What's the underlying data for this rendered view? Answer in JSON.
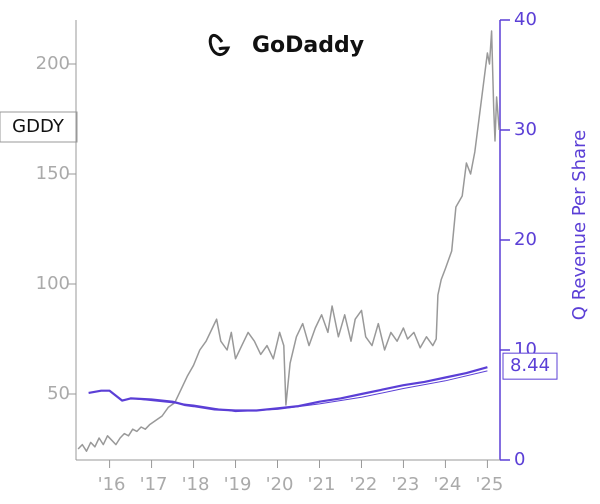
{
  "chart_data": {
    "type": "line",
    "title": "GoDaddy",
    "ticker": "GDDY",
    "y2_label": "Q Revenue Per Share",
    "xlim": [
      2015.2,
      2025.3
    ],
    "xticks": [
      {
        "value": 2016,
        "label": "'16"
      },
      {
        "value": 2017,
        "label": "'17"
      },
      {
        "value": 2018,
        "label": "'18"
      },
      {
        "value": 2019,
        "label": "'19"
      },
      {
        "value": 2020,
        "label": "'20"
      },
      {
        "value": 2021,
        "label": "'21"
      },
      {
        "value": 2022,
        "label": "'22"
      },
      {
        "value": 2023,
        "label": "'23"
      },
      {
        "value": 2024,
        "label": "'24"
      },
      {
        "value": 2025,
        "label": "'25"
      }
    ],
    "ylim": [
      20,
      220
    ],
    "yticks": [
      50,
      100,
      150,
      200
    ],
    "y2lim": [
      0,
      40
    ],
    "y2ticks": [
      0,
      10,
      20,
      30,
      40
    ],
    "series": [
      {
        "name": "GDDY",
        "color": "#999999",
        "axis": "y",
        "width": 1.5,
        "x": [
          2015.25,
          2015.35,
          2015.45,
          2015.55,
          2015.65,
          2015.75,
          2015.85,
          2015.95,
          2016.05,
          2016.15,
          2016.25,
          2016.35,
          2016.45,
          2016.55,
          2016.65,
          2016.75,
          2016.85,
          2016.95,
          2017.1,
          2017.25,
          2017.4,
          2017.55,
          2017.7,
          2017.85,
          2018.0,
          2018.15,
          2018.3,
          2018.45,
          2018.55,
          2018.65,
          2018.8,
          2018.9,
          2019.0,
          2019.15,
          2019.3,
          2019.45,
          2019.6,
          2019.75,
          2019.9,
          2020.05,
          2020.15,
          2020.2,
          2020.3,
          2020.45,
          2020.6,
          2020.75,
          2020.9,
          2021.05,
          2021.2,
          2021.3,
          2021.45,
          2021.6,
          2021.75,
          2021.85,
          2022.0,
          2022.1,
          2022.25,
          2022.4,
          2022.55,
          2022.7,
          2022.85,
          2023.0,
          2023.1,
          2023.25,
          2023.4,
          2023.55,
          2023.7,
          2023.78,
          2023.82,
          2023.9,
          2024.0,
          2024.15,
          2024.25,
          2024.4,
          2024.5,
          2024.6,
          2024.7,
          2024.8,
          2024.9,
          2025.0,
          2025.05,
          2025.1,
          2025.15,
          2025.18,
          2025.22,
          2025.28
        ],
        "values": [
          25,
          27,
          24,
          28,
          26,
          30,
          27,
          31,
          29,
          27,
          30,
          32,
          31,
          34,
          33,
          35,
          34,
          36,
          38,
          40,
          44,
          46,
          52,
          58,
          63,
          70,
          74,
          80,
          84,
          74,
          70,
          78,
          66,
          72,
          78,
          74,
          68,
          72,
          66,
          78,
          72,
          45,
          64,
          76,
          82,
          72,
          80,
          86,
          78,
          90,
          76,
          86,
          74,
          84,
          88,
          76,
          72,
          82,
          70,
          78,
          74,
          80,
          75,
          78,
          71,
          76,
          72,
          75,
          95,
          102,
          107,
          115,
          135,
          140,
          155,
          150,
          160,
          175,
          190,
          205,
          200,
          215,
          180,
          165,
          185,
          170
        ]
      },
      {
        "color": "#5b3fd6",
        "axis": "y2",
        "width": 2.2,
        "x": [
          2015.5,
          2015.8,
          2016.0,
          2016.3,
          2016.5,
          2017.0,
          2017.5,
          2017.8,
          2018.0,
          2018.5,
          2019.0,
          2019.5,
          2020.0,
          2020.5,
          2021.0,
          2021.5,
          2022.0,
          2022.5,
          2023.0,
          2023.5,
          2024.0,
          2024.5,
          2025.0
        ],
        "values": [
          6.1,
          6.3,
          6.3,
          5.4,
          5.6,
          5.5,
          5.3,
          5.0,
          4.9,
          4.6,
          4.5,
          4.5,
          4.7,
          4.9,
          5.3,
          5.6,
          6.0,
          6.4,
          6.8,
          7.1,
          7.5,
          7.9,
          8.44
        ],
        "value_labels": [
          null,
          null,
          null,
          null,
          null,
          null,
          null,
          null,
          null,
          null,
          null,
          null,
          null,
          null,
          null,
          null,
          null,
          null,
          null,
          null,
          null,
          null,
          "8.44"
        ]
      },
      {
        "color": "#5b3fd6",
        "axis": "y2",
        "width": 1,
        "x": [
          2016.5,
          2017.0,
          2018.0,
          2019.0,
          2020.0,
          2021.0,
          2022.0,
          2023.0,
          2024.0,
          2025.0
        ],
        "values": [
          5.6,
          5.4,
          5.0,
          4.4,
          4.6,
          5.1,
          5.7,
          6.5,
          7.2,
          8.1
        ]
      }
    ]
  }
}
